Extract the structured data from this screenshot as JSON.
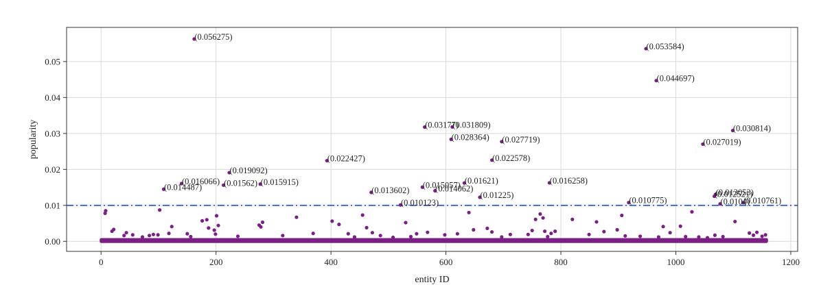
{
  "chart_data": {
    "type": "scatter",
    "xlabel": "entity ID",
    "ylabel": "popularity",
    "xlim": [
      -60,
      1212
    ],
    "ylim": [
      -0.0028,
      0.0595
    ],
    "xticks": [
      0,
      200,
      400,
      600,
      800,
      1000,
      1200
    ],
    "yticks": [
      0.0,
      0.01,
      0.02,
      0.03,
      0.04,
      0.05
    ],
    "ytick_labels": [
      "0.00",
      "0.01",
      "0.02",
      "0.03",
      "0.04",
      "0.05"
    ],
    "grid": true,
    "threshold": 0.01,
    "colors": {
      "points": "#7a1f86",
      "threshold": "#4169e1",
      "grid": "#d9d9d9",
      "axes": "#333333"
    },
    "annotated_points": [
      {
        "x": 162,
        "y": 0.056275,
        "label": "(0.056275)"
      },
      {
        "x": 948,
        "y": 0.053584,
        "label": "(0.053584)"
      },
      {
        "x": 966,
        "y": 0.044697,
        "label": "(0.044697)"
      },
      {
        "x": 563,
        "y": 0.03177,
        "label": "(0.03177)"
      },
      {
        "x": 611,
        "y": 0.031809,
        "label": "(0.031809)"
      },
      {
        "x": 1099,
        "y": 0.030814,
        "label": "(0.030814)"
      },
      {
        "x": 609,
        "y": 0.028364,
        "label": "(0.028364)"
      },
      {
        "x": 697,
        "y": 0.027719,
        "label": "(0.027719)"
      },
      {
        "x": 1047,
        "y": 0.027019,
        "label": "(0.027019)"
      },
      {
        "x": 393,
        "y": 0.022427,
        "label": "(0.022427)"
      },
      {
        "x": 680,
        "y": 0.022578,
        "label": "(0.022578)"
      },
      {
        "x": 223,
        "y": 0.019092,
        "label": "(0.019092)"
      },
      {
        "x": 140,
        "y": 0.016066,
        "label": "(0.016066)"
      },
      {
        "x": 213,
        "y": 0.01562,
        "label": "(0.01562)"
      },
      {
        "x": 277,
        "y": 0.015915,
        "label": "(0.015915)"
      },
      {
        "x": 109,
        "y": 0.014487,
        "label": "(0.014487)"
      },
      {
        "x": 470,
        "y": 0.013602,
        "label": "(0.013602)"
      },
      {
        "x": 559,
        "y": 0.015057,
        "label": "(0.015057)"
      },
      {
        "x": 581,
        "y": 0.014062,
        "label": "(0.014062)"
      },
      {
        "x": 632,
        "y": 0.01621,
        "label": "(0.01621)"
      },
      {
        "x": 659,
        "y": 0.01225,
        "label": "(0.01225)"
      },
      {
        "x": 780,
        "y": 0.016258,
        "label": "(0.016258)"
      },
      {
        "x": 521,
        "y": 0.010123,
        "label": "(0.010123)"
      },
      {
        "x": 918,
        "y": 0.010775,
        "label": "(0.010775)"
      },
      {
        "x": 1069,
        "y": 0.013053,
        "label": "(0.013053)"
      },
      {
        "x": 1067,
        "y": 0.012521,
        "label": "(0.012521)"
      },
      {
        "x": 1077,
        "y": 0.0104,
        "label": "(0.0104)"
      },
      {
        "x": 1117,
        "y": 0.010761,
        "label": "(0.010761)"
      }
    ],
    "minor_points": [
      {
        "x": 8,
        "y": 0.0085
      },
      {
        "x": 7,
        "y": 0.0078
      },
      {
        "x": 19,
        "y": 0.0028
      },
      {
        "x": 22,
        "y": 0.0033
      },
      {
        "x": 40,
        "y": 0.0016
      },
      {
        "x": 44,
        "y": 0.0024
      },
      {
        "x": 55,
        "y": 0.0018
      },
      {
        "x": 72,
        "y": 0.0012
      },
      {
        "x": 84,
        "y": 0.0016
      },
      {
        "x": 91,
        "y": 0.0019
      },
      {
        "x": 99,
        "y": 0.0018
      },
      {
        "x": 102,
        "y": 0.0087
      },
      {
        "x": 118,
        "y": 0.0022
      },
      {
        "x": 123,
        "y": 0.0041
      },
      {
        "x": 150,
        "y": 0.0021
      },
      {
        "x": 156,
        "y": 0.0013
      },
      {
        "x": 176,
        "y": 0.0057
      },
      {
        "x": 184,
        "y": 0.006
      },
      {
        "x": 187,
        "y": 0.0037
      },
      {
        "x": 197,
        "y": 0.0031
      },
      {
        "x": 199,
        "y": 0.002
      },
      {
        "x": 201,
        "y": 0.0071
      },
      {
        "x": 204,
        "y": 0.0044
      },
      {
        "x": 238,
        "y": 0.0014
      },
      {
        "x": 275,
        "y": 0.0045
      },
      {
        "x": 278,
        "y": 0.004
      },
      {
        "x": 281,
        "y": 0.0053
      },
      {
        "x": 316,
        "y": 0.0016
      },
      {
        "x": 340,
        "y": 0.0067
      },
      {
        "x": 369,
        "y": 0.0022
      },
      {
        "x": 402,
        "y": 0.0056
      },
      {
        "x": 414,
        "y": 0.0047
      },
      {
        "x": 430,
        "y": 0.0021
      },
      {
        "x": 441,
        "y": 0.0012
      },
      {
        "x": 455,
        "y": 0.0073
      },
      {
        "x": 462,
        "y": 0.0038
      },
      {
        "x": 472,
        "y": 0.0024
      },
      {
        "x": 486,
        "y": 0.0016
      },
      {
        "x": 508,
        "y": 0.0011
      },
      {
        "x": 530,
        "y": 0.0052
      },
      {
        "x": 539,
        "y": 0.0013
      },
      {
        "x": 549,
        "y": 0.0021
      },
      {
        "x": 568,
        "y": 0.0025
      },
      {
        "x": 598,
        "y": 0.0018
      },
      {
        "x": 620,
        "y": 0.0021
      },
      {
        "x": 640,
        "y": 0.008
      },
      {
        "x": 648,
        "y": 0.0032
      },
      {
        "x": 672,
        "y": 0.0036
      },
      {
        "x": 680,
        "y": 0.0026
      },
      {
        "x": 697,
        "y": 0.0012
      },
      {
        "x": 712,
        "y": 0.0019
      },
      {
        "x": 743,
        "y": 0.0019
      },
      {
        "x": 750,
        "y": 0.003
      },
      {
        "x": 756,
        "y": 0.0061
      },
      {
        "x": 764,
        "y": 0.0076
      },
      {
        "x": 769,
        "y": 0.0065
      },
      {
        "x": 772,
        "y": 0.0028
      },
      {
        "x": 777,
        "y": 0.0013
      },
      {
        "x": 783,
        "y": 0.0022
      },
      {
        "x": 790,
        "y": 0.0028
      },
      {
        "x": 820,
        "y": 0.0061
      },
      {
        "x": 849,
        "y": 0.0019
      },
      {
        "x": 862,
        "y": 0.0054
      },
      {
        "x": 875,
        "y": 0.0027
      },
      {
        "x": 898,
        "y": 0.0032
      },
      {
        "x": 906,
        "y": 0.0072
      },
      {
        "x": 912,
        "y": 0.0015
      },
      {
        "x": 938,
        "y": 0.0014
      },
      {
        "x": 970,
        "y": 0.0012
      },
      {
        "x": 978,
        "y": 0.0041
      },
      {
        "x": 990,
        "y": 0.0024
      },
      {
        "x": 1008,
        "y": 0.0042
      },
      {
        "x": 1017,
        "y": 0.0013
      },
      {
        "x": 1028,
        "y": 0.0082
      },
      {
        "x": 1040,
        "y": 0.0012
      },
      {
        "x": 1055,
        "y": 0.001
      },
      {
        "x": 1068,
        "y": 0.0017
      },
      {
        "x": 1082,
        "y": 0.0013
      },
      {
        "x": 1103,
        "y": 0.0055
      },
      {
        "x": 1128,
        "y": 0.0023
      },
      {
        "x": 1135,
        "y": 0.0017
      },
      {
        "x": 1141,
        "y": 0.0025
      },
      {
        "x": 1150,
        "y": 0.0014
      },
      {
        "x": 1156,
        "y": 0.0018
      }
    ],
    "baseline_band": {
      "x_start": 0,
      "x_end": 1158,
      "y_max": 0.0009
    }
  }
}
